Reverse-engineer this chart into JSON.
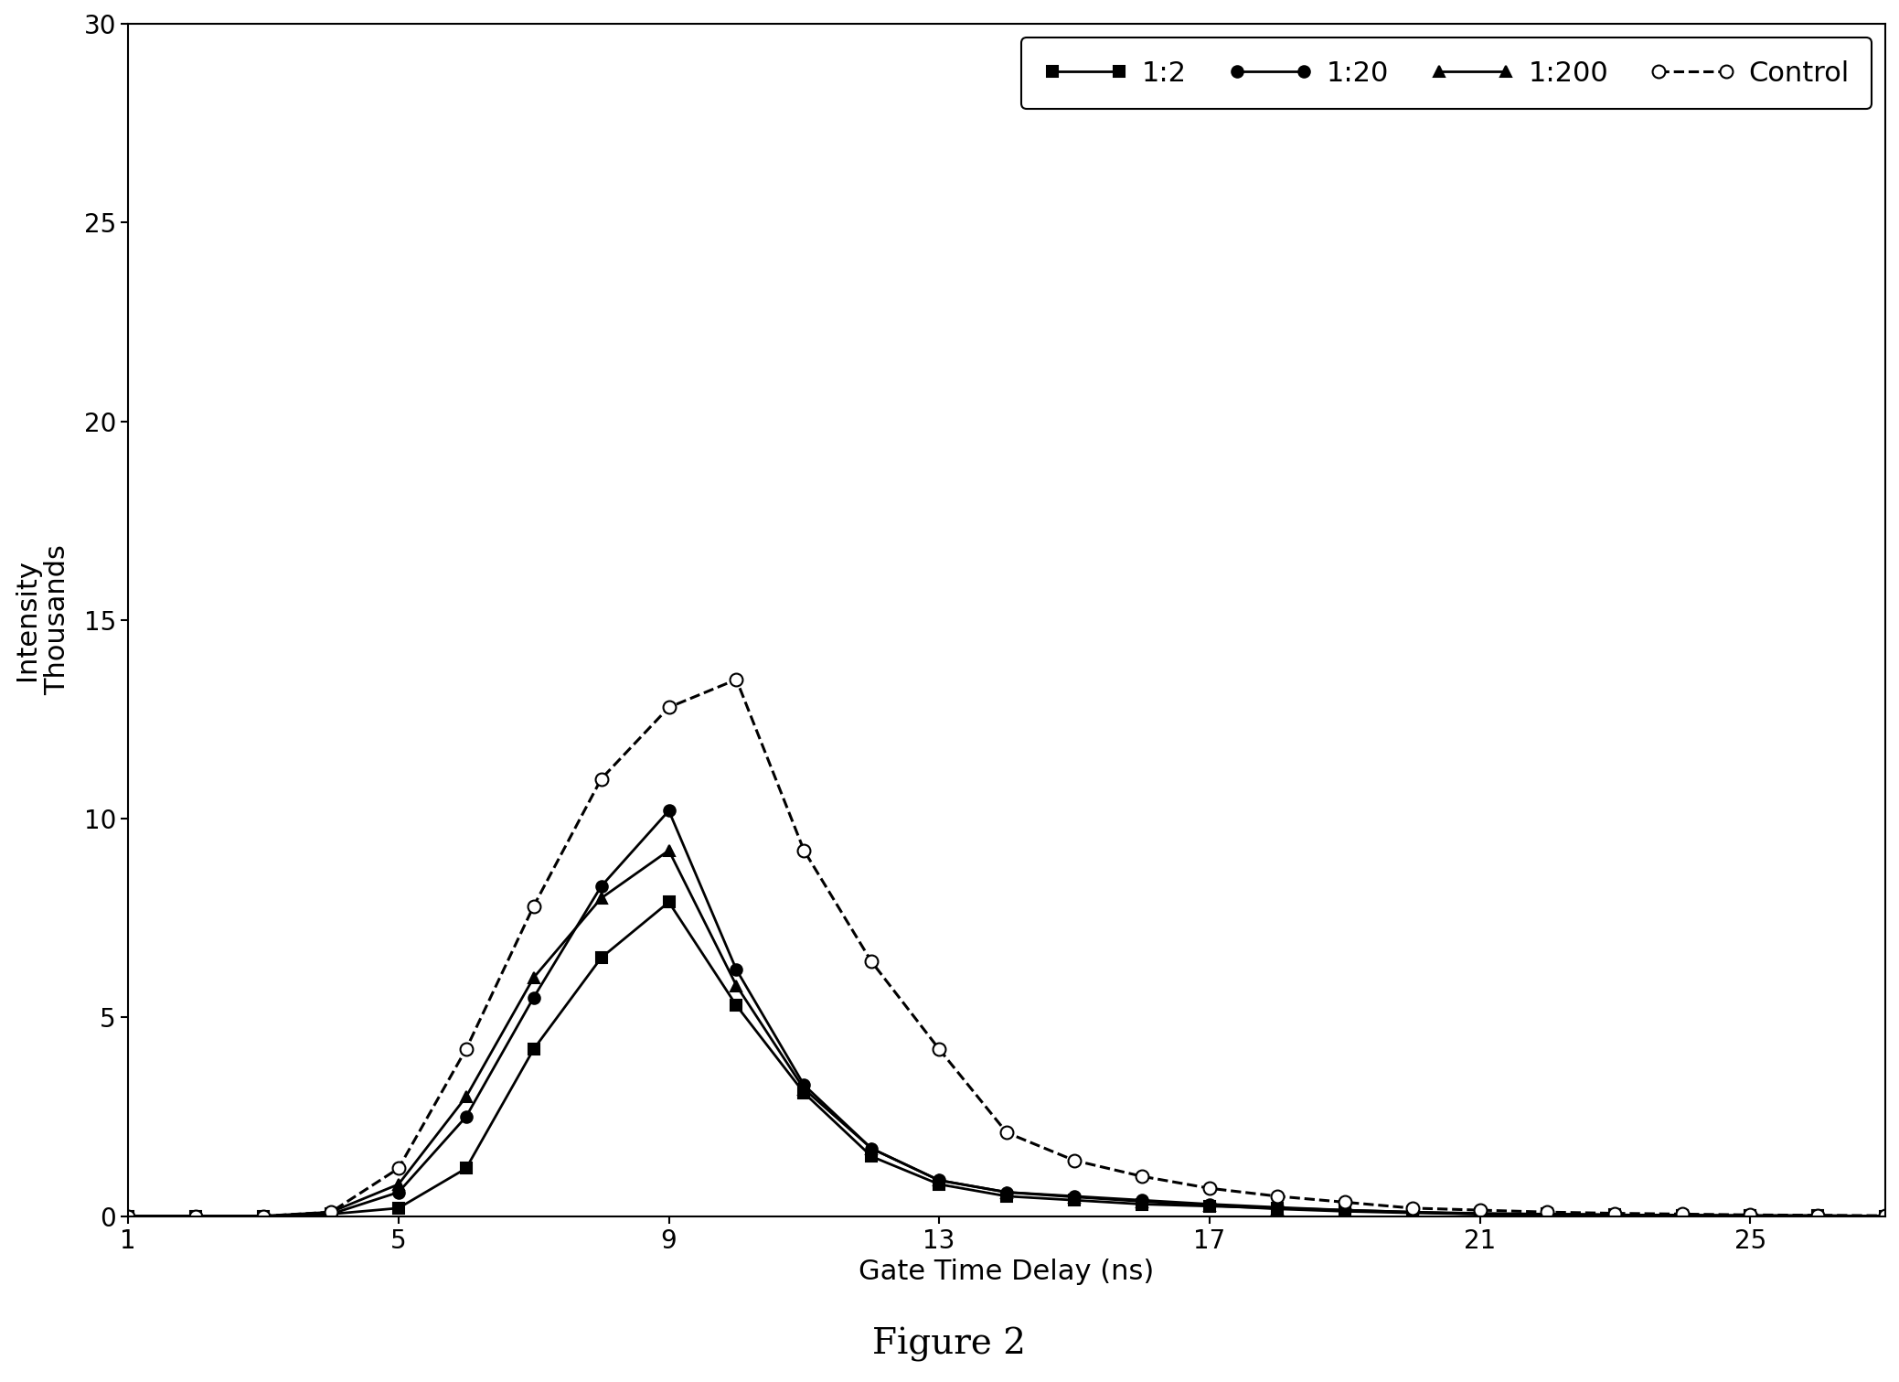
{
  "title": "Figure 2",
  "xlabel": "Gate Time Delay (ns)",
  "ylabel": "Intensity\nThousands",
  "xlim": [
    1,
    27
  ],
  "ylim": [
    0,
    30
  ],
  "xticks": [
    1,
    5,
    9,
    13,
    17,
    21,
    25
  ],
  "yticks": [
    0,
    5,
    10,
    15,
    20,
    25,
    30
  ],
  "series": {
    "1:2": {
      "x": [
        1,
        2,
        3,
        4,
        5,
        6,
        7,
        8,
        9,
        10,
        11,
        12,
        13,
        14,
        15,
        16,
        17,
        18,
        19,
        20,
        21,
        22,
        23,
        24,
        25,
        26,
        27
      ],
      "y": [
        0,
        0,
        0,
        0.05,
        0.2,
        1.2,
        4.2,
        6.5,
        7.9,
        5.3,
        3.1,
        1.5,
        0.8,
        0.5,
        0.4,
        0.3,
        0.25,
        0.2,
        0.15,
        0.1,
        0.05,
        0.05,
        0.03,
        0.02,
        0.01,
        0.01,
        0.0
      ],
      "marker": "s",
      "linestyle": "-",
      "color": "#000000",
      "markersize": 9,
      "linewidth": 2.0,
      "markerfacecolor": "#000000"
    },
    "1:20": {
      "x": [
        1,
        2,
        3,
        4,
        5,
        6,
        7,
        8,
        9,
        10,
        11,
        12,
        13,
        14,
        15,
        16,
        17,
        18,
        19,
        20,
        21,
        22,
        23,
        24,
        25,
        26,
        27
      ],
      "y": [
        0,
        0,
        0,
        0.05,
        0.6,
        2.5,
        5.5,
        8.3,
        10.2,
        6.2,
        3.3,
        1.7,
        0.9,
        0.6,
        0.5,
        0.4,
        0.3,
        0.22,
        0.15,
        0.1,
        0.07,
        0.05,
        0.03,
        0.02,
        0.01,
        0.01,
        0.0
      ],
      "marker": "o",
      "linestyle": "-",
      "color": "#000000",
      "markersize": 9,
      "linewidth": 2.0,
      "markerfacecolor": "#000000"
    },
    "1:200": {
      "x": [
        1,
        2,
        3,
        4,
        5,
        6,
        7,
        8,
        9,
        10,
        11,
        12,
        13,
        14,
        15,
        16,
        17,
        18,
        19,
        20,
        21,
        22,
        23,
        24,
        25,
        26,
        27
      ],
      "y": [
        0,
        0,
        0,
        0.1,
        0.8,
        3.0,
        6.0,
        8.0,
        9.2,
        5.8,
        3.2,
        1.7,
        0.9,
        0.6,
        0.48,
        0.37,
        0.27,
        0.18,
        0.12,
        0.08,
        0.05,
        0.04,
        0.03,
        0.02,
        0.01,
        0.01,
        0.0
      ],
      "marker": "^",
      "linestyle": "-",
      "color": "#000000",
      "markersize": 9,
      "linewidth": 2.0,
      "markerfacecolor": "#000000"
    },
    "Control": {
      "x": [
        1,
        2,
        3,
        4,
        5,
        6,
        7,
        8,
        9,
        10,
        11,
        12,
        13,
        14,
        15,
        16,
        17,
        18,
        19,
        20,
        21,
        22,
        23,
        24,
        25,
        26,
        27
      ],
      "y": [
        0,
        0,
        0,
        0.1,
        1.2,
        4.2,
        7.8,
        11.0,
        12.8,
        13.5,
        9.2,
        6.4,
        4.2,
        2.1,
        1.4,
        1.0,
        0.7,
        0.5,
        0.35,
        0.2,
        0.15,
        0.1,
        0.07,
        0.05,
        0.03,
        0.02,
        0.01
      ],
      "marker": "o",
      "linestyle": "--",
      "color": "#000000",
      "markersize": 10,
      "linewidth": 2.2,
      "markerfacecolor": "white"
    }
  },
  "legend_labels": [
    "1:2",
    "1:20",
    "1:200",
    "Control"
  ],
  "title_fontsize": 28,
  "axis_label_fontsize": 22,
  "tick_fontsize": 20,
  "legend_fontsize": 22
}
